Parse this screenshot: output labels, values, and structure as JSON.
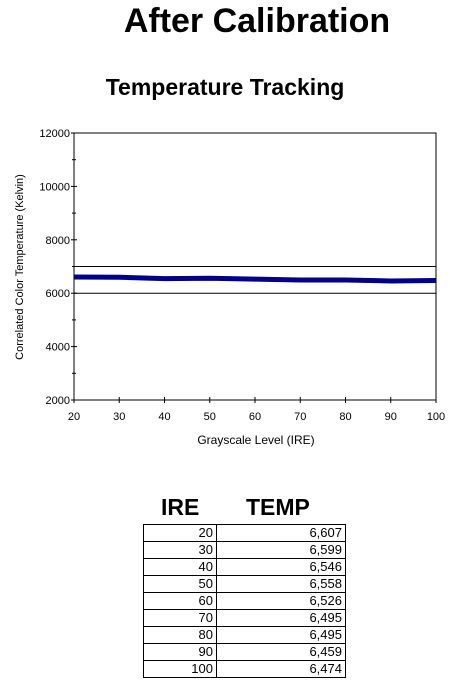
{
  "header": {
    "title": "After Calibration"
  },
  "chart_data": {
    "type": "line",
    "title": "Temperature Tracking",
    "xlabel": "Grayscale Level (IRE)",
    "ylabel": "Correlated Color Temperature (Kelvin)",
    "xlim": [
      20,
      100
    ],
    "ylim": [
      2000,
      12000
    ],
    "x_ticks": [
      20,
      30,
      40,
      50,
      60,
      70,
      80,
      90,
      100
    ],
    "y_ticks": [
      2000,
      4000,
      6000,
      8000,
      10000,
      12000
    ],
    "reference_lines": [
      6000,
      7000
    ],
    "series": [
      {
        "x": [
          20,
          30,
          40,
          50,
          60,
          70,
          80,
          90,
          100
        ],
        "values": [
          6607,
          6599,
          6546,
          6558,
          6526,
          6495,
          6495,
          6459,
          6474
        ],
        "color": "#00008b"
      }
    ],
    "grid": false
  },
  "table": {
    "headers": [
      "IRE",
      "TEMP"
    ],
    "rows": [
      [
        "20",
        "6,607"
      ],
      [
        "30",
        "6,599"
      ],
      [
        "40",
        "6,546"
      ],
      [
        "50",
        "6,558"
      ],
      [
        "60",
        "6,526"
      ],
      [
        "70",
        "6,495"
      ],
      [
        "80",
        "6,495"
      ],
      [
        "90",
        "6,459"
      ],
      [
        "100",
        "6,474"
      ]
    ]
  }
}
